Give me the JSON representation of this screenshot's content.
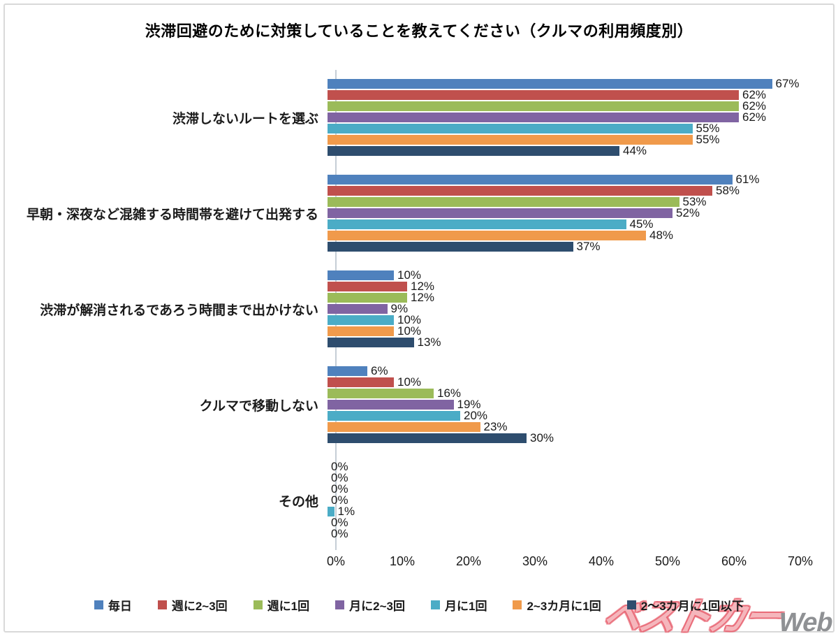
{
  "title": "渋滞回避のために対策していることを教えてください（クルマの利用頻度別）",
  "chart_data": {
    "type": "bar",
    "orientation": "horizontal",
    "title": "渋滞回避のために対策していることを教えてください（クルマの利用頻度別）",
    "categories": [
      "渋滞しないルートを選ぶ",
      "早朝・深夜など混雑する時間帯を避けて出発する",
      "渋滞が解消されるであろう時間まで出かけない",
      "クルマで移動しない",
      "その他"
    ],
    "series": [
      {
        "name": "毎日",
        "color": "#4F81BD",
        "values": [
          67,
          61,
          10,
          6,
          0
        ]
      },
      {
        "name": "週に2~3回",
        "color": "#C0504D",
        "values": [
          62,
          58,
          12,
          10,
          0
        ]
      },
      {
        "name": "週に1回",
        "color": "#9BBB59",
        "values": [
          62,
          53,
          12,
          16,
          0
        ]
      },
      {
        "name": "月に2~3回",
        "color": "#8064A2",
        "values": [
          62,
          52,
          9,
          19,
          0
        ]
      },
      {
        "name": "月に1回",
        "color": "#4BACC6",
        "values": [
          55,
          45,
          10,
          20,
          1
        ]
      },
      {
        "name": "2~3カ月に1回",
        "color": "#F09A4B",
        "values": [
          55,
          48,
          10,
          23,
          0
        ]
      },
      {
        "name": "2～3カ月に1回以下",
        "color": "#2E4D6E",
        "values": [
          44,
          37,
          13,
          30,
          0
        ]
      }
    ],
    "value_suffix": "%",
    "x_ticks": [
      "0%",
      "10%",
      "20%",
      "30%",
      "40%",
      "50%",
      "60%",
      "70%"
    ],
    "xlim": [
      0,
      70
    ],
    "grid": false,
    "legend_position": "bottom"
  },
  "watermark": {
    "brand": "ベストカー",
    "suffix": "Web"
  }
}
